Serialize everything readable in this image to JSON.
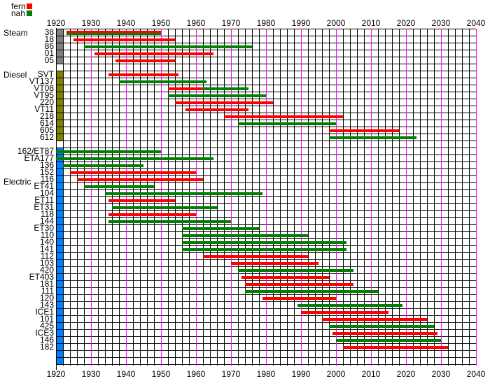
{
  "chart_data": {
    "type": "gantt",
    "title": "",
    "xlim": [
      1920,
      2040
    ],
    "x_ticks": [
      1920,
      1930,
      1940,
      1950,
      1960,
      1970,
      1980,
      1990,
      2000,
      2010,
      2020,
      2030,
      2040
    ],
    "legend": [
      {
        "name": "fern",
        "color": "#ff0000"
      },
      {
        "name": "nah",
        "color": "#008000"
      }
    ],
    "legend_placement": "top-left",
    "groups": [
      {
        "name": "Steam",
        "color": "#808080",
        "extra_rows": 1,
        "rows": [
          {
            "label": "38",
            "bars": [
              {
                "type": "fern",
                "start": 1923,
                "end": 1950
              },
              {
                "type": "nah",
                "start": 1923,
                "end": 1950
              }
            ]
          },
          {
            "label": "18",
            "bars": [
              {
                "type": "fern",
                "start": 1925,
                "end": 1954
              }
            ]
          },
          {
            "label": "86",
            "bars": [
              {
                "type": "nah",
                "start": 1928,
                "end": 1976
              }
            ]
          },
          {
            "label": "01",
            "bars": [
              {
                "type": "fern",
                "start": 1931,
                "end": 1965
              }
            ]
          },
          {
            "label": "05",
            "bars": [
              {
                "type": "fern",
                "start": 1937,
                "end": 1954
              }
            ]
          }
        ]
      },
      {
        "name": "Diesel",
        "color": "#808000",
        "extra_rows": 1,
        "rows": [
          {
            "label": "SVT",
            "bars": [
              {
                "type": "fern",
                "start": 1935,
                "end": 1955
              }
            ]
          },
          {
            "label": "VT137",
            "bars": [
              {
                "type": "nah",
                "start": 1938,
                "end": 1963
              }
            ]
          },
          {
            "label": "VT08",
            "bars": [
              {
                "type": "fern",
                "start": 1952,
                "end": 1962
              },
              {
                "type": "nah",
                "start": 1962,
                "end": 1975
              }
            ]
          },
          {
            "label": "VT95",
            "bars": [
              {
                "type": "nah",
                "start": 1952,
                "end": 1980
              }
            ]
          },
          {
            "label": "220",
            "bars": [
              {
                "type": "fern",
                "start": 1954,
                "end": 1982
              }
            ]
          },
          {
            "label": "VT11",
            "bars": [
              {
                "type": "fern",
                "start": 1957,
                "end": 1975
              }
            ]
          },
          {
            "label": "218",
            "bars": [
              {
                "type": "fern",
                "start": 1968,
                "end": 2002
              }
            ]
          },
          {
            "label": "614",
            "bars": [
              {
                "type": "nah",
                "start": 1972,
                "end": 2000
              }
            ]
          },
          {
            "label": "605",
            "bars": [
              {
                "type": "fern",
                "start": 1998,
                "end": 2018
              }
            ]
          },
          {
            "label": "612",
            "bars": [
              {
                "type": "nah",
                "start": 1998,
                "end": 2023
              }
            ]
          }
        ]
      },
      {
        "name": "Electric",
        "color": "#0080ff",
        "extra_rows": 2,
        "rows": [
          {
            "label": "162/ET87",
            "bars": [
              {
                "type": "nah",
                "start": 1920,
                "end": 1950
              }
            ]
          },
          {
            "label": "ETA177",
            "bars": [
              {
                "type": "nah",
                "start": 1920,
                "end": 1965
              }
            ]
          },
          {
            "label": "136",
            "bars": [
              {
                "type": "nah",
                "start": 1922,
                "end": 1945
              }
            ]
          },
          {
            "label": "152",
            "bars": [
              {
                "type": "fern",
                "start": 1924,
                "end": 1960
              }
            ]
          },
          {
            "label": "116",
            "bars": [
              {
                "type": "fern",
                "start": 1926,
                "end": 1962
              }
            ]
          },
          {
            "label": "ET41",
            "bars": [
              {
                "type": "nah",
                "start": 1928,
                "end": 1948
              }
            ]
          },
          {
            "label": "104",
            "bars": [
              {
                "type": "nah",
                "start": 1934,
                "end": 1979
              }
            ]
          },
          {
            "label": "ET11",
            "bars": [
              {
                "type": "fern",
                "start": 1935,
                "end": 1954
              }
            ]
          },
          {
            "label": "ET31",
            "bars": [
              {
                "type": "nah",
                "start": 1936,
                "end": 1966
              }
            ]
          },
          {
            "label": "118",
            "bars": [
              {
                "type": "fern",
                "start": 1935,
                "end": 1960
              }
            ]
          },
          {
            "label": "144",
            "bars": [
              {
                "type": "nah",
                "start": 1935,
                "end": 1970
              }
            ]
          },
          {
            "label": "ET30",
            "bars": [
              {
                "type": "nah",
                "start": 1956,
                "end": 1978
              }
            ]
          },
          {
            "label": "110",
            "bars": [
              {
                "type": "nah",
                "start": 1956,
                "end": 1992
              }
            ]
          },
          {
            "label": "140",
            "bars": [
              {
                "type": "nah",
                "start": 1956,
                "end": 2003
              }
            ]
          },
          {
            "label": "141",
            "bars": [
              {
                "type": "nah",
                "start": 1956,
                "end": 2003
              }
            ]
          },
          {
            "label": "112",
            "bars": [
              {
                "type": "fern",
                "start": 1962,
                "end": 1992
              }
            ]
          },
          {
            "label": "103",
            "bars": [
              {
                "type": "fern",
                "start": 1970,
                "end": 1995
              }
            ]
          },
          {
            "label": "420",
            "bars": [
              {
                "type": "nah",
                "start": 1972,
                "end": 2005
              }
            ]
          },
          {
            "label": "ET403",
            "bars": [
              {
                "type": "fern",
                "start": 1973,
                "end": 1998
              }
            ]
          },
          {
            "label": "181",
            "bars": [
              {
                "type": "fern",
                "start": 1974,
                "end": 2005
              }
            ]
          },
          {
            "label": "111",
            "bars": [
              {
                "type": "nah",
                "start": 1974,
                "end": 2012
              }
            ]
          },
          {
            "label": "120",
            "bars": [
              {
                "type": "fern",
                "start": 1979,
                "end": 2000
              }
            ]
          },
          {
            "label": "143",
            "bars": [
              {
                "type": "nah",
                "start": 1989,
                "end": 2019
              }
            ]
          },
          {
            "label": "ICE1",
            "bars": [
              {
                "type": "fern",
                "start": 1990,
                "end": 2015
              }
            ]
          },
          {
            "label": "101",
            "bars": [
              {
                "type": "fern",
                "start": 1996,
                "end": 2026
              }
            ]
          },
          {
            "label": "425",
            "bars": [
              {
                "type": "nah",
                "start": 1998,
                "end": 2028
              }
            ]
          },
          {
            "label": "ICE3",
            "bars": [
              {
                "type": "fern",
                "start": 1999,
                "end": 2029
              }
            ]
          },
          {
            "label": "146",
            "bars": [
              {
                "type": "nah",
                "start": 2000,
                "end": 2030
              }
            ]
          },
          {
            "label": "182",
            "bars": [
              {
                "type": "fern",
                "start": 2002,
                "end": 2032
              }
            ]
          }
        ]
      }
    ]
  }
}
